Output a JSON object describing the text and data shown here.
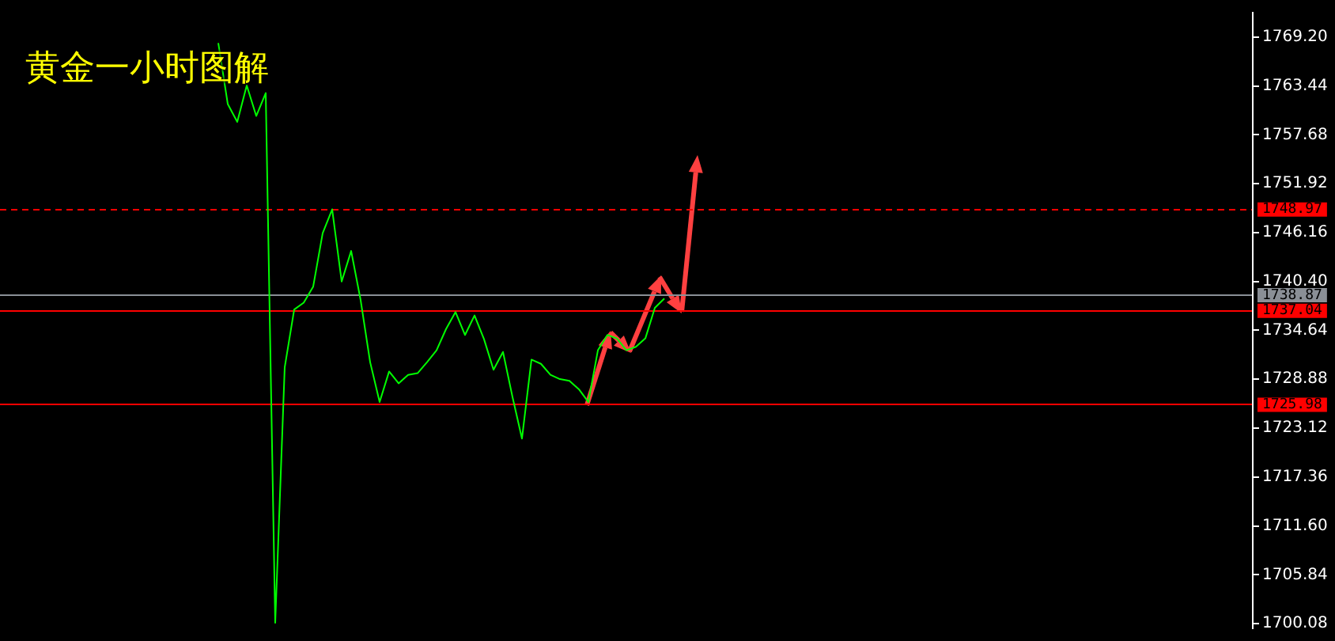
{
  "chart_data": {
    "type": "line",
    "title": "黄金一小时图解",
    "categories": [
      null,
      null,
      null,
      null,
      null,
      null,
      null,
      null,
      null,
      null,
      null,
      null,
      null,
      null,
      null,
      null,
      null,
      null,
      null,
      null,
      null,
      null,
      null,
      null,
      null,
      null,
      null,
      null,
      null,
      null,
      null,
      null,
      null,
      null,
      null,
      null,
      null,
      null,
      null,
      null,
      null,
      null,
      null,
      null,
      null,
      null,
      null,
      null,
      null,
      null,
      null,
      null,
      null,
      null,
      null,
      null,
      null,
      null,
      null,
      null,
      null,
      null,
      null,
      null,
      null,
      null,
      null,
      null,
      null,
      null,
      null,
      null,
      null,
      null,
      null,
      null,
      null,
      null,
      null,
      null,
      null,
      null,
      null,
      null,
      null,
      null,
      null,
      null,
      null,
      null,
      null,
      null,
      null,
      null,
      null,
      null,
      null,
      null,
      null,
      null,
      null,
      null,
      null,
      null,
      null,
      null,
      null,
      null,
      null,
      null,
      null,
      null,
      null,
      null,
      null,
      null,
      null,
      null,
      null,
      null,
      null,
      null,
      null,
      null,
      null,
      null,
      null,
      null,
      null,
      null,
      null,
      null,
      null
    ],
    "series": [
      {
        "color": "#00ff00",
        "values": [
          null,
          null,
          null,
          null,
          null,
          null,
          null,
          null,
          null,
          null,
          null,
          null,
          null,
          null,
          null,
          null,
          null,
          null,
          null,
          null,
          null,
          null,
          null,
          1768.5,
          1761.3,
          1759.2,
          1763.5,
          1759.9,
          1762.6,
          1700.2,
          1730.3,
          1737.1,
          1737.9,
          1739.8,
          1746.1,
          1748.9,
          1740.4,
          1744.0,
          1738.2,
          1730.9,
          1726.2,
          1729.8,
          1728.4,
          1729.4,
          1729.6,
          1730.9,
          1732.3,
          1734.8,
          1736.8,
          1734.1,
          1736.4,
          1733.6,
          1730.0,
          1732.1,
          1726.8,
          1721.9,
          1731.2,
          1730.7,
          1729.4,
          1728.9,
          1728.7,
          1727.7,
          1726.2,
          1732.3,
          1734.1,
          1733.7,
          1732.3,
          1732.7,
          1733.7,
          1737.3,
          1738.4,
          null,
          null,
          null,
          null,
          null,
          null,
          null,
          null,
          null,
          null,
          null,
          null,
          null,
          null,
          null,
          null,
          null,
          null,
          null,
          null,
          null,
          null,
          null,
          null,
          null,
          null,
          null,
          null,
          null,
          null,
          null,
          null,
          null,
          null,
          null,
          null,
          null,
          null,
          null,
          null,
          null,
          null,
          null,
          null,
          null,
          null,
          null,
          null,
          null,
          null,
          null,
          null,
          null,
          null,
          null,
          null,
          null,
          null,
          null,
          null,
          null,
          null
        ]
      }
    ],
    "ylim": [
      1699.54,
      1772.07
    ],
    "yticks": [
      {
        "value": 1700.08,
        "label": "1700.08"
      },
      {
        "value": 1705.84,
        "label": "1705.84"
      },
      {
        "value": 1711.6,
        "label": "1711.60"
      },
      {
        "value": 1717.36,
        "label": "1717.36"
      },
      {
        "value": 1723.12,
        "label": "1723.12"
      },
      {
        "value": 1728.88,
        "label": "1728.88"
      },
      {
        "value": 1734.64,
        "label": "1734.64"
      },
      {
        "value": 1740.4,
        "label": "1740.40"
      },
      {
        "value": 1746.16,
        "label": "1746.16"
      },
      {
        "value": 1751.92,
        "label": "1751.92"
      },
      {
        "value": 1757.68,
        "label": "1757.68"
      },
      {
        "value": 1763.44,
        "label": "1763.44"
      },
      {
        "value": 1769.2,
        "label": "1769.20"
      }
    ],
    "ref_lines": [
      {
        "axis": "y",
        "value": 1748.97,
        "label": "1748.97",
        "color": "#ff0000",
        "line_style": "dashed"
      },
      {
        "axis": "y",
        "value": 1738.87,
        "label": "1738.87",
        "color": "#8a8f96",
        "line_style": "solid"
      },
      {
        "axis": "y",
        "value": 1737.04,
        "label": "1737.04",
        "color": "#ff0000",
        "line_style": "solid"
      },
      {
        "axis": "y",
        "value": 1725.98,
        "label": "1725.98",
        "color": "#ff0000",
        "line_style": "solid"
      }
    ],
    "tick_labels": "y",
    "grid": false,
    "legend": false,
    "marker": "none",
    "line_style": "solid"
  }
}
